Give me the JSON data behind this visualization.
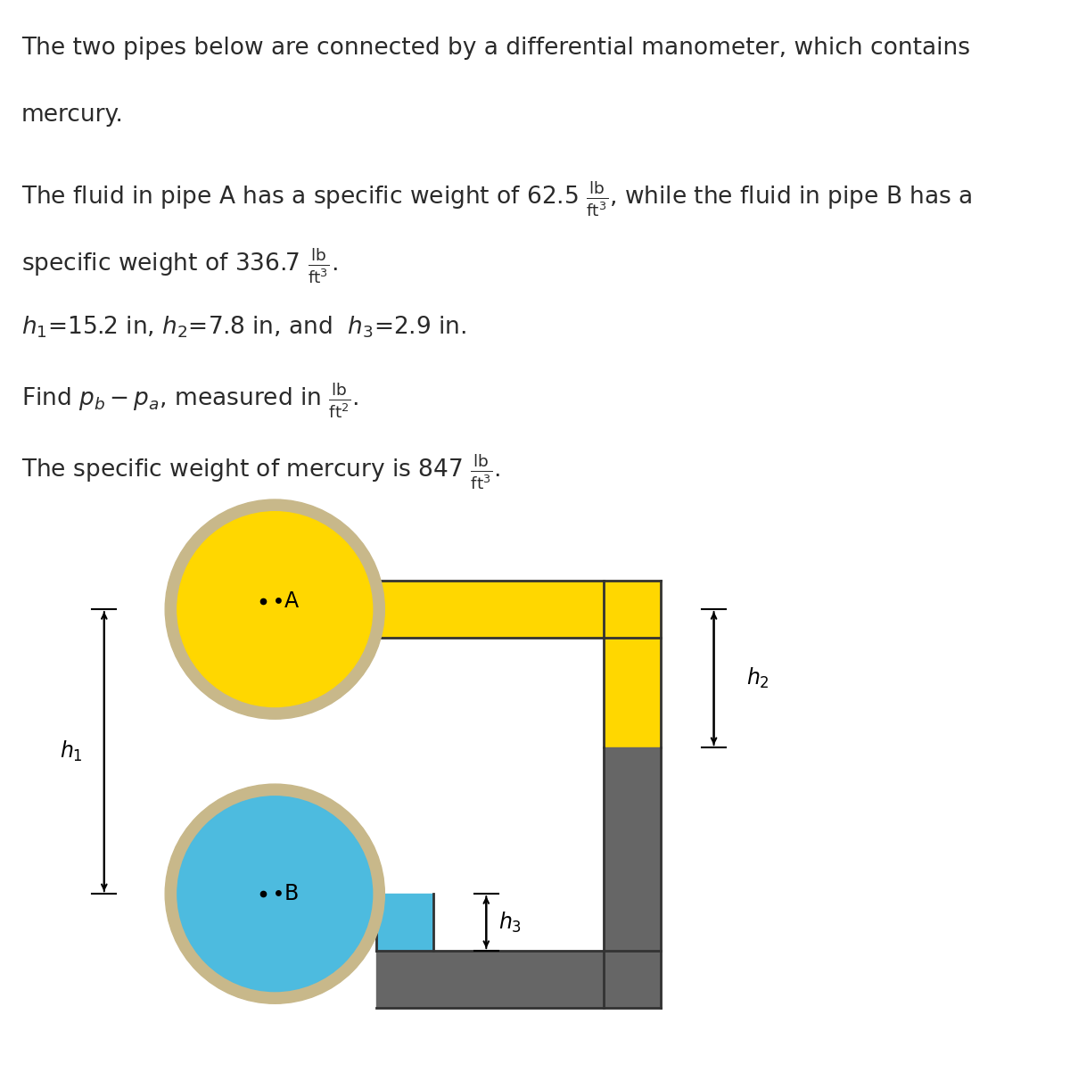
{
  "bg_color": "#ffffff",
  "pipe_A_color": "#FFD700",
  "pipe_B_color": "#4DBBDF",
  "pipe_border_color": "#C8B88A",
  "tube_yellow": "#FFD700",
  "tube_dark": "#666666",
  "tube_border": "#333333",
  "text_color": "#2a2a2a",
  "font_size": 19,
  "diagram_font_size": 17
}
